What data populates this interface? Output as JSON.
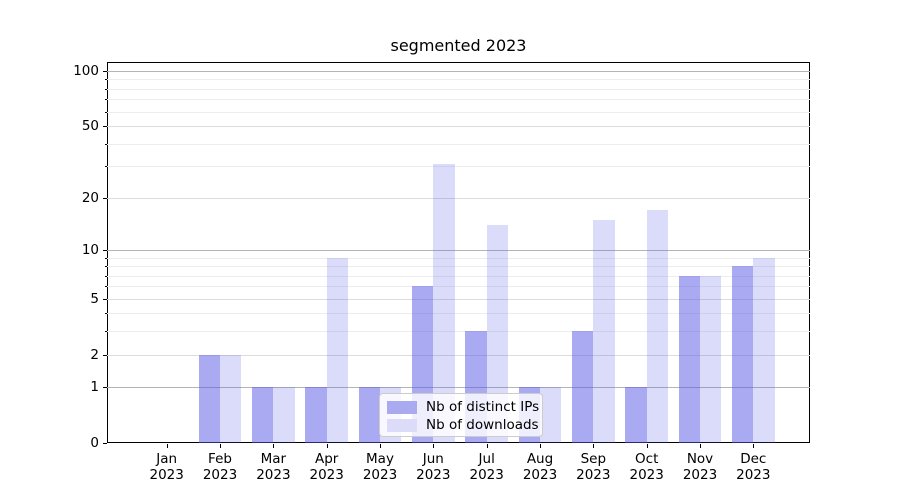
{
  "figure": {
    "title": "segmented 2023"
  },
  "chart_data": {
    "type": "bar",
    "title": "segmented 2023",
    "categories": [
      "Jan 2023",
      "Feb 2023",
      "Mar 2023",
      "Apr 2023",
      "May 2023",
      "Jun 2023",
      "Jul 2023",
      "Aug 2023",
      "Sep 2023",
      "Oct 2023",
      "Nov 2023",
      "Dec 2023"
    ],
    "month_labels": [
      "Jan",
      "Feb",
      "Mar",
      "Apr",
      "May",
      "Jun",
      "Jul",
      "Aug",
      "Sep",
      "Oct",
      "Nov",
      "Dec"
    ],
    "year_label": "2023",
    "series": [
      {
        "name": "Nb of distinct IPs",
        "color": "rgba(85,85,230,0.5)",
        "values": [
          0,
          2,
          1,
          1,
          1,
          6,
          3,
          1,
          3,
          1,
          7,
          8
        ]
      },
      {
        "name": "Nb of downloads",
        "color": "rgba(85,85,230,0.21)",
        "values": [
          0,
          2,
          1,
          9,
          1,
          31,
          14,
          1,
          15,
          17,
          7,
          9
        ]
      }
    ],
    "xlabel": "",
    "ylabel": "",
    "yscale": "log1p",
    "yticks": [
      0,
      1,
      2,
      5,
      10,
      20,
      50,
      100
    ],
    "ylim": [
      0,
      111
    ],
    "grid": true,
    "legend": {
      "entries": [
        "Nb of distinct IPs",
        "Nb of downloads"
      ],
      "position": "lower center"
    }
  },
  "colors": {
    "bar_dark": "rgba(85,85,230,0.5)",
    "bar_light": "rgba(85,85,230,0.21)",
    "grid_strong": "#b4b4b4",
    "grid_mid": "#dcdcdc",
    "grid_faint": "#ededed",
    "legend_swatch_dark": "#aaaaf0",
    "legend_swatch_light": "#dcdcf8"
  }
}
